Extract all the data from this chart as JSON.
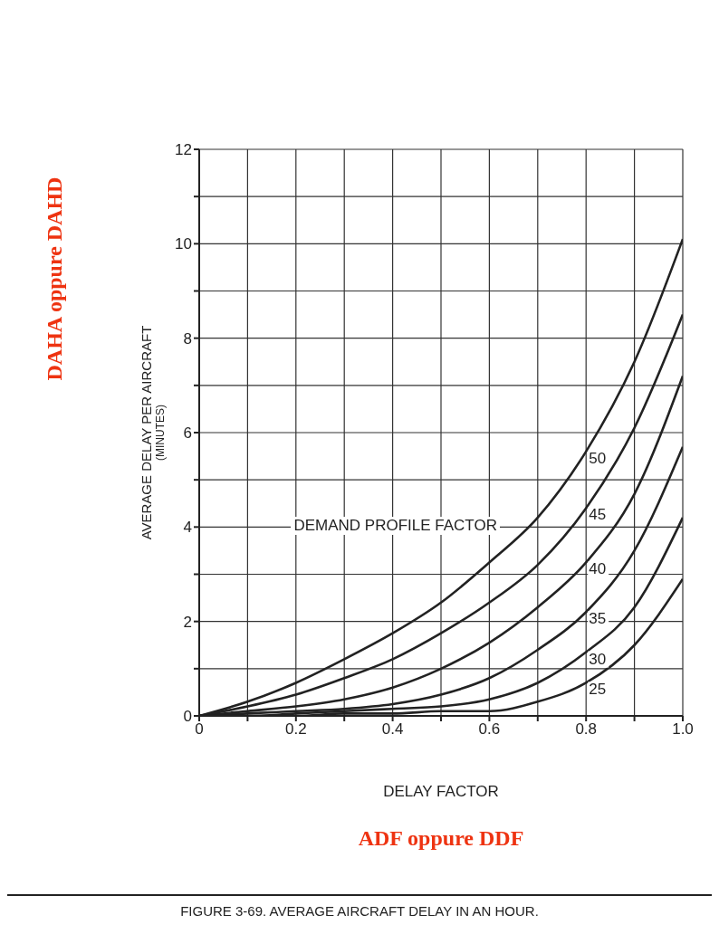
{
  "chart_data": {
    "type": "line",
    "title": "FIGURE 3-69. AVERAGE AIRCRAFT DELAY IN AN HOUR.",
    "xlabel": "DELAY FACTOR",
    "ylabel": "AVERAGE DELAY PER AIRCRAFT\n(MINUTES)",
    "legend_title": "DEMAND PROFILE FACTOR",
    "annotations": [
      "DAHA oppure DAHD",
      "ADF oppure DDF"
    ],
    "x": [
      0,
      0.1,
      0.2,
      0.3,
      0.4,
      0.5,
      0.6,
      0.7,
      0.8,
      0.9,
      1.0
    ],
    "series": [
      {
        "name": "50",
        "color": "#222222",
        "values": [
          0,
          0.3,
          0.7,
          1.2,
          1.75,
          2.4,
          3.25,
          4.2,
          5.6,
          7.5,
          10.1
        ]
      },
      {
        "name": "45",
        "color": "#222222",
        "values": [
          0,
          0.2,
          0.45,
          0.8,
          1.2,
          1.75,
          2.4,
          3.2,
          4.4,
          6.1,
          8.5
        ]
      },
      {
        "name": "40",
        "color": "#222222",
        "values": [
          0,
          0.1,
          0.2,
          0.35,
          0.6,
          1.0,
          1.55,
          2.3,
          3.25,
          4.7,
          7.2
        ]
      },
      {
        "name": "35",
        "color": "#222222",
        "values": [
          0,
          0.05,
          0.1,
          0.15,
          0.25,
          0.45,
          0.8,
          1.4,
          2.2,
          3.5,
          5.7
        ]
      },
      {
        "name": "30",
        "color": "#222222",
        "values": [
          0,
          0,
          0.05,
          0.1,
          0.15,
          0.2,
          0.35,
          0.7,
          1.35,
          2.3,
          4.2
        ]
      },
      {
        "name": "25",
        "color": "#222222",
        "values": [
          0,
          0,
          0,
          0.05,
          0.05,
          0.1,
          0.1,
          0.3,
          0.7,
          1.5,
          2.9
        ]
      }
    ],
    "xlim": [
      0,
      1.0
    ],
    "xticks": [
      0,
      {
        "value": 0.1,
        "label": null
      },
      0.2,
      {
        "value": 0.3,
        "label": null
      },
      0.4,
      {
        "value": 0.5,
        "label": null
      },
      0.6,
      {
        "value": 0.7,
        "label": null
      },
      0.8,
      {
        "value": 0.9,
        "label": null
      },
      {
        "value": 1.0,
        "label": "1.0"
      }
    ],
    "ylim": [
      0,
      12
    ],
    "yticks": [
      0,
      {
        "value": 1,
        "label": null
      },
      2,
      {
        "value": 3,
        "label": null
      },
      4,
      {
        "value": 5,
        "label": null
      },
      6,
      {
        "value": 7,
        "label": null
      },
      8,
      {
        "value": 9,
        "label": null
      },
      10,
      {
        "value": 11,
        "label": null
      },
      12
    ],
    "grid": true,
    "line_style": "solid"
  }
}
